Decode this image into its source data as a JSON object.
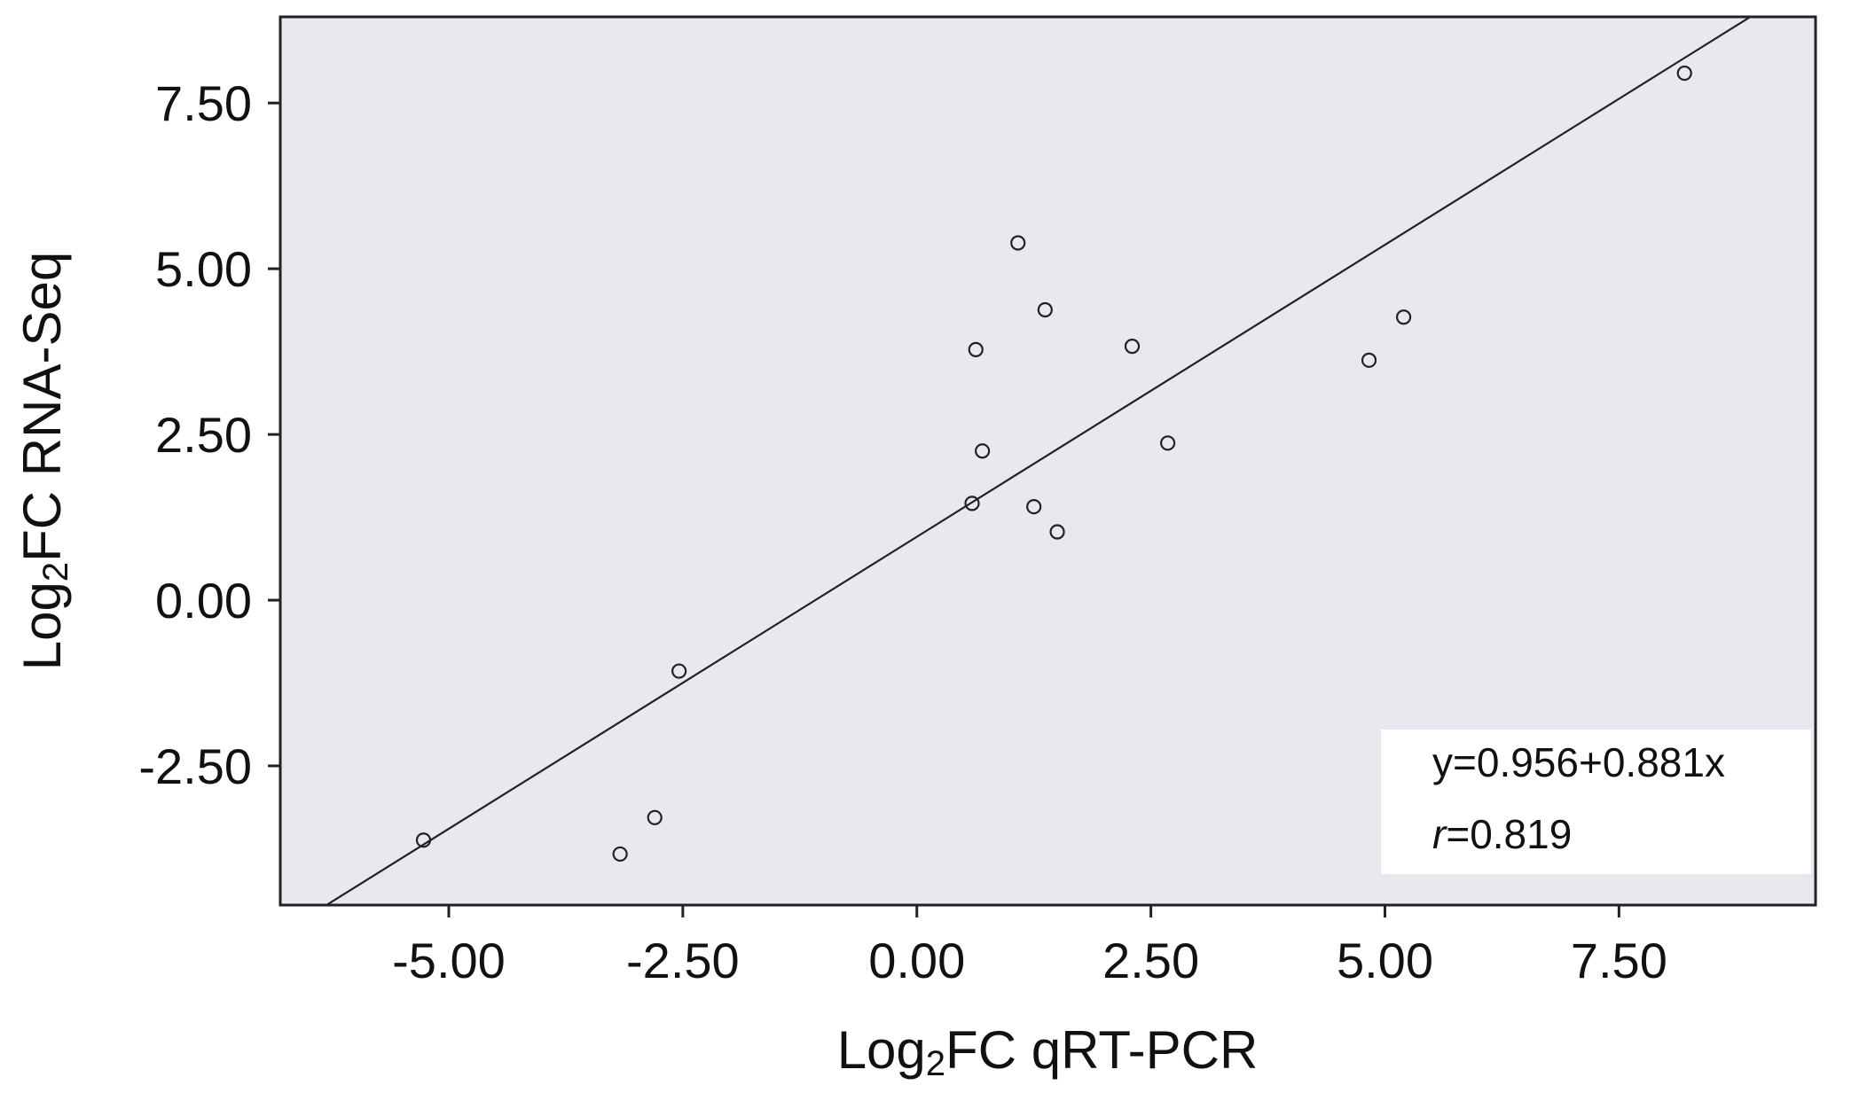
{
  "chart_data": {
    "type": "scatter",
    "xlabel": {
      "prefix": "Log",
      "sub": "2",
      "suffix": "FC qRT-PCR"
    },
    "ylabel": {
      "prefix": "Log",
      "sub": "2",
      "suffix": "FC RNA-Seq"
    },
    "xlim": [
      -6.8,
      9.6
    ],
    "ylim": [
      -4.6,
      8.8
    ],
    "x_ticks": [
      -5.0,
      -2.5,
      0.0,
      2.5,
      5.0,
      7.5
    ],
    "x_tick_labels": [
      "-5.00",
      "-2.50",
      "0.00",
      "2.50",
      "5.00",
      "7.50"
    ],
    "y_ticks": [
      -2.5,
      0.0,
      2.5,
      5.0,
      7.5
    ],
    "y_tick_labels": [
      "-2.50",
      "0.00",
      "2.50",
      "5.00",
      "7.50"
    ],
    "points": [
      {
        "x": -5.27,
        "y": -3.62
      },
      {
        "x": -3.17,
        "y": -3.83
      },
      {
        "x": -2.8,
        "y": -3.28
      },
      {
        "x": -2.54,
        "y": -1.07
      },
      {
        "x": 0.59,
        "y": 1.46
      },
      {
        "x": 0.63,
        "y": 3.78
      },
      {
        "x": 0.7,
        "y": 2.25
      },
      {
        "x": 1.08,
        "y": 5.39
      },
      {
        "x": 1.25,
        "y": 1.41
      },
      {
        "x": 1.37,
        "y": 4.38
      },
      {
        "x": 1.5,
        "y": 1.03
      },
      {
        "x": 2.3,
        "y": 3.83
      },
      {
        "x": 2.68,
        "y": 2.37
      },
      {
        "x": 4.83,
        "y": 3.62
      },
      {
        "x": 5.2,
        "y": 4.27
      },
      {
        "x": 8.2,
        "y": 7.95
      }
    ],
    "fit_line": {
      "intercept": 0.956,
      "slope": 0.881
    },
    "annotation": {
      "equation": "y=0.956+0.881x",
      "r_label": "r",
      "r_value": "=0.819"
    },
    "plot_background": "#e8e8ee",
    "grid": false,
    "legend": "none"
  }
}
